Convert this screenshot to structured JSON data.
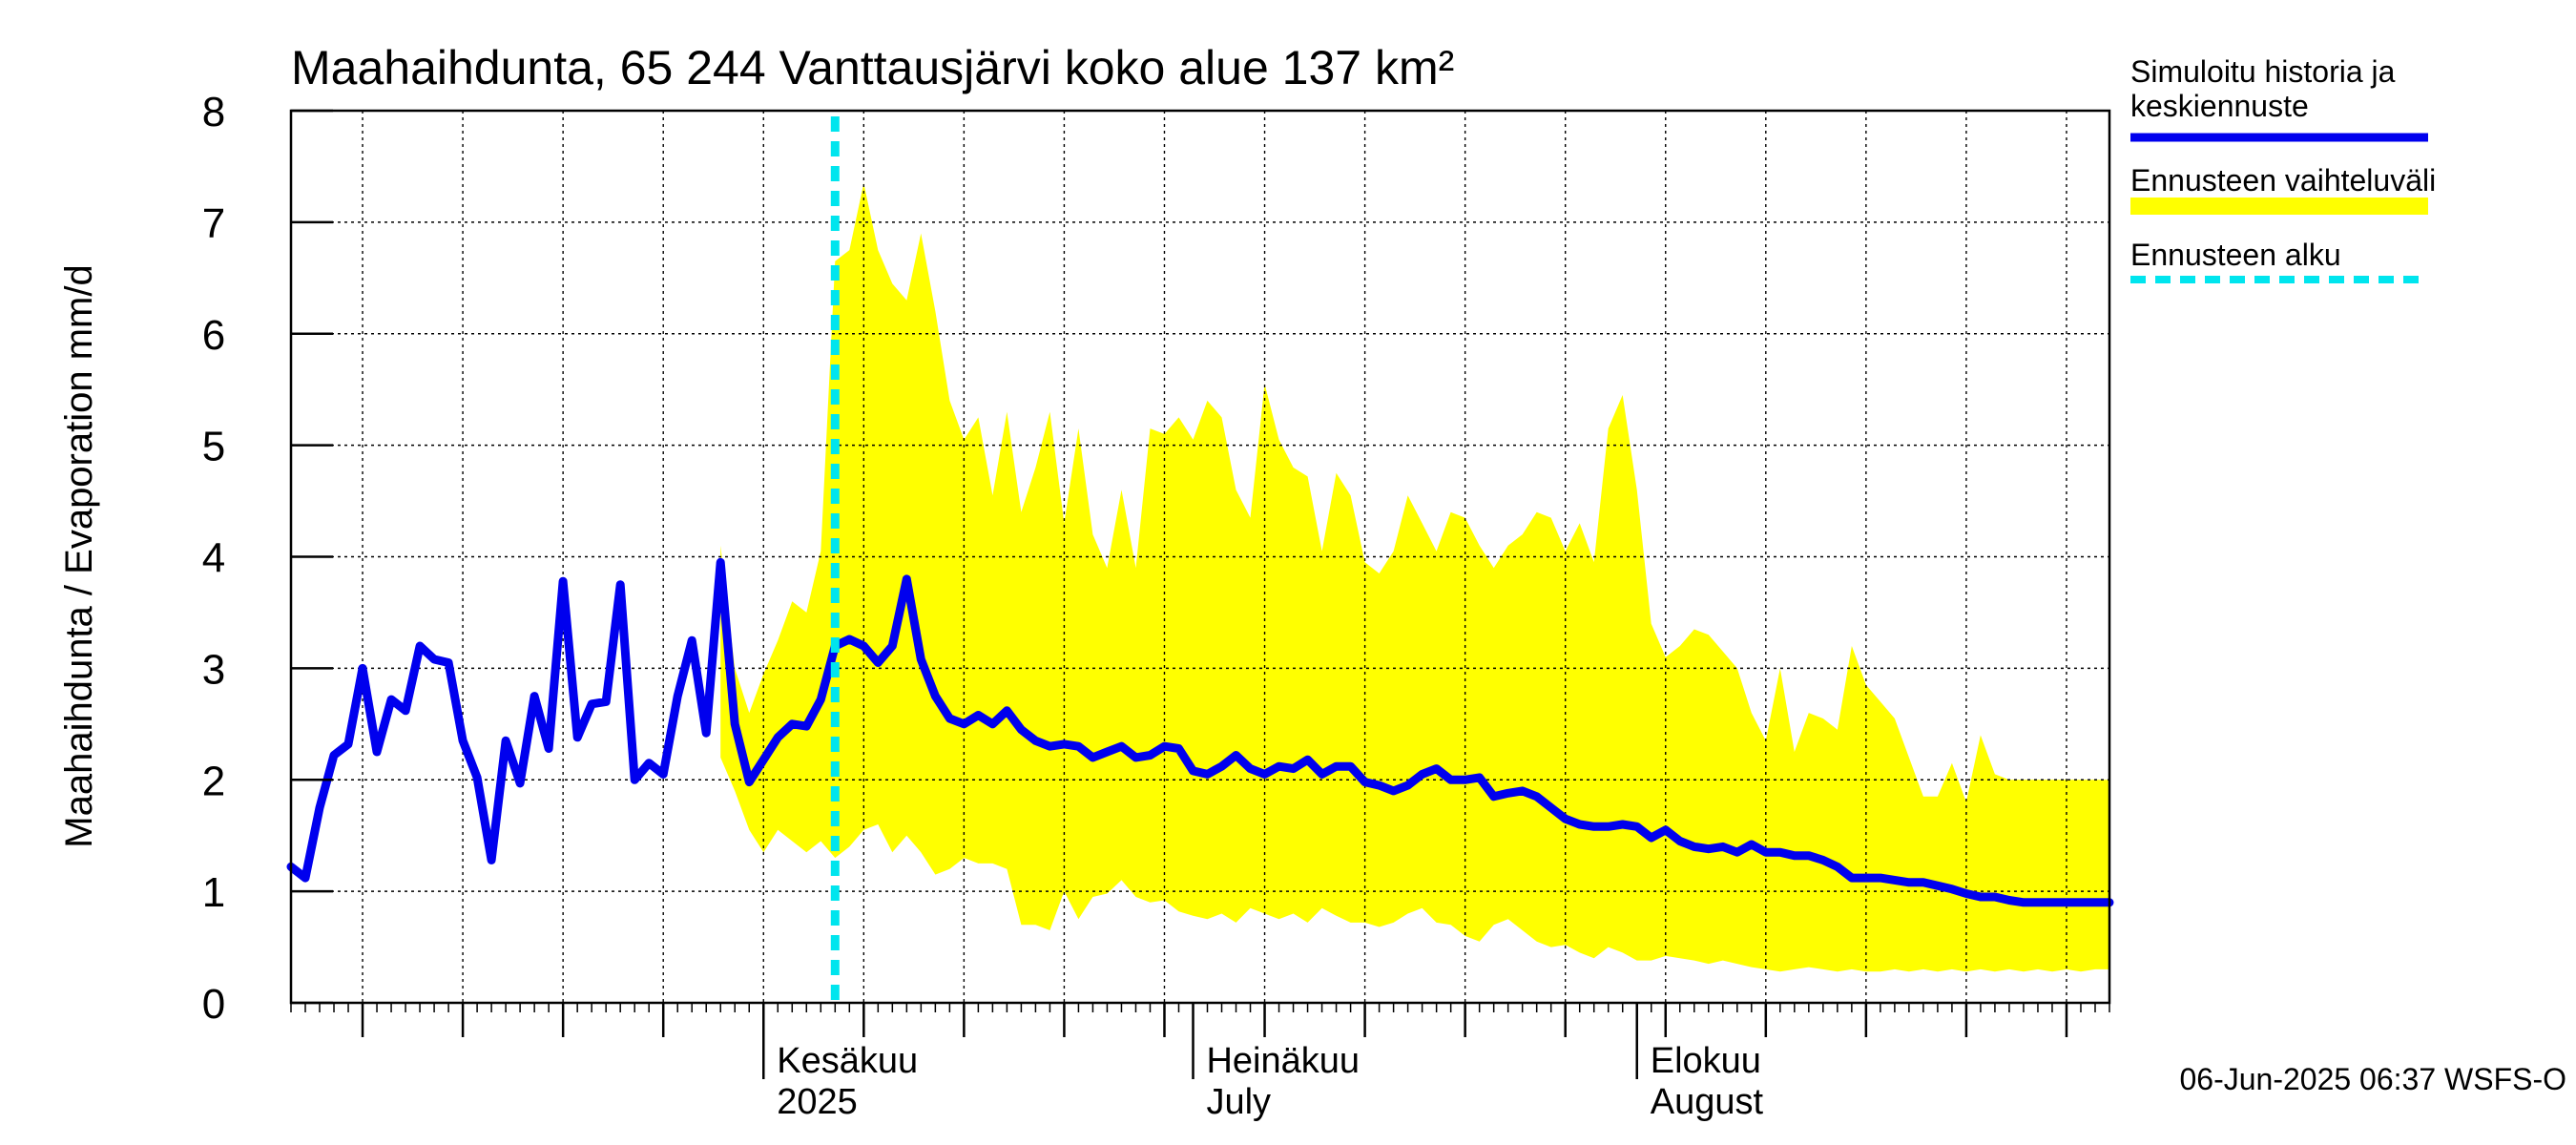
{
  "chart_data": {
    "type": "area",
    "title": "Maahaihdunta, 65 244 Vanttausjärvi koko alue 137 km²",
    "ylabel": "Maahaihdunta / Evaporation   mm/d",
    "ylim": [
      0,
      8
    ],
    "yticks": [
      0,
      1,
      2,
      3,
      4,
      5,
      6,
      7,
      8
    ],
    "xlim": [
      "2025-04-29",
      "2025-09-03"
    ],
    "forecast_start": "2025-06-06",
    "month_labels": [
      {
        "date": "2025-06-01",
        "line1": "Kesäkuu",
        "line2": "2025"
      },
      {
        "date": "2025-07-01",
        "line1": "Heinäkuu",
        "line2": "July"
      },
      {
        "date": "2025-08-01",
        "line1": "Elokuu",
        "line2": "August"
      }
    ],
    "x": [
      "2025-04-29",
      "2025-04-30",
      "2025-05-01",
      "2025-05-02",
      "2025-05-03",
      "2025-05-04",
      "2025-05-05",
      "2025-05-06",
      "2025-05-07",
      "2025-05-08",
      "2025-05-09",
      "2025-05-10",
      "2025-05-11",
      "2025-05-12",
      "2025-05-13",
      "2025-05-14",
      "2025-05-15",
      "2025-05-16",
      "2025-05-17",
      "2025-05-18",
      "2025-05-19",
      "2025-05-20",
      "2025-05-21",
      "2025-05-22",
      "2025-05-23",
      "2025-05-24",
      "2025-05-25",
      "2025-05-26",
      "2025-05-27",
      "2025-05-28",
      "2025-05-29",
      "2025-05-30",
      "2025-05-31",
      "2025-06-01",
      "2025-06-02",
      "2025-06-03",
      "2025-06-04",
      "2025-06-05",
      "2025-06-06",
      "2025-06-07",
      "2025-06-08",
      "2025-06-09",
      "2025-06-10",
      "2025-06-11",
      "2025-06-12",
      "2025-06-13",
      "2025-06-14",
      "2025-06-15",
      "2025-06-16",
      "2025-06-17",
      "2025-06-18",
      "2025-06-19",
      "2025-06-20",
      "2025-06-21",
      "2025-06-22",
      "2025-06-23",
      "2025-06-24",
      "2025-06-25",
      "2025-06-26",
      "2025-06-27",
      "2025-06-28",
      "2025-06-29",
      "2025-06-30",
      "2025-07-01",
      "2025-07-02",
      "2025-07-03",
      "2025-07-04",
      "2025-07-05",
      "2025-07-06",
      "2025-07-07",
      "2025-07-08",
      "2025-07-09",
      "2025-07-10",
      "2025-07-11",
      "2025-07-12",
      "2025-07-13",
      "2025-07-14",
      "2025-07-15",
      "2025-07-16",
      "2025-07-17",
      "2025-07-18",
      "2025-07-19",
      "2025-07-20",
      "2025-07-21",
      "2025-07-22",
      "2025-07-23",
      "2025-07-24",
      "2025-07-25",
      "2025-07-26",
      "2025-07-27",
      "2025-07-28",
      "2025-07-29",
      "2025-07-30",
      "2025-07-31",
      "2025-08-01",
      "2025-08-02",
      "2025-08-03",
      "2025-08-04",
      "2025-08-05",
      "2025-08-06",
      "2025-08-07",
      "2025-08-08",
      "2025-08-09",
      "2025-08-10",
      "2025-08-11",
      "2025-08-12",
      "2025-08-13",
      "2025-08-14",
      "2025-08-15",
      "2025-08-16",
      "2025-08-17",
      "2025-08-18",
      "2025-08-19",
      "2025-08-20",
      "2025-08-21",
      "2025-08-22",
      "2025-08-23",
      "2025-08-24",
      "2025-08-25",
      "2025-08-26",
      "2025-08-27",
      "2025-08-28",
      "2025-08-29",
      "2025-08-30",
      "2025-08-31",
      "2025-09-01",
      "2025-09-02",
      "2025-09-03"
    ],
    "series": [
      {
        "name": "Simuloitu historia ja keskiennuste",
        "color": "#0000ee",
        "values": [
          1.22,
          1.12,
          1.75,
          2.22,
          2.32,
          3.0,
          2.25,
          2.72,
          2.62,
          3.2,
          3.08,
          3.05,
          2.35,
          2.02,
          1.28,
          2.35,
          1.97,
          2.75,
          2.28,
          3.78,
          2.38,
          2.68,
          2.7,
          3.75,
          2.0,
          2.15,
          2.05,
          2.75,
          3.25,
          2.42,
          3.95,
          2.5,
          1.98,
          2.18,
          2.38,
          2.5,
          2.48,
          2.72,
          3.2,
          3.26,
          3.2,
          3.05,
          3.2,
          3.8,
          3.08,
          2.75,
          2.55,
          2.5,
          2.58,
          2.5,
          2.62,
          2.45,
          2.35,
          2.3,
          2.32,
          2.3,
          2.2,
          2.25,
          2.3,
          2.2,
          2.22,
          2.3,
          2.28,
          2.08,
          2.05,
          2.12,
          2.22,
          2.1,
          2.05,
          2.12,
          2.1,
          2.18,
          2.05,
          2.12,
          2.12,
          1.98,
          1.95,
          1.9,
          1.95,
          2.05,
          2.1,
          2.0,
          2.0,
          2.02,
          1.85,
          1.88,
          1.9,
          1.85,
          1.75,
          1.65,
          1.6,
          1.58,
          1.58,
          1.6,
          1.58,
          1.48,
          1.55,
          1.45,
          1.4,
          1.38,
          1.4,
          1.35,
          1.42,
          1.35,
          1.35,
          1.32,
          1.32,
          1.28,
          1.22,
          1.12,
          1.12,
          1.12,
          1.1,
          1.08,
          1.08,
          1.05,
          1.02,
          0.98,
          0.95,
          0.95,
          0.92,
          0.9,
          0.9,
          0.9,
          0.9,
          0.9,
          0.9,
          0.9
        ]
      },
      {
        "name": "Ennusteen vaihteluväli",
        "color": "#ffff00",
        "upper": [
          null,
          null,
          null,
          null,
          null,
          null,
          null,
          null,
          null,
          null,
          null,
          null,
          null,
          null,
          null,
          null,
          null,
          null,
          null,
          null,
          null,
          null,
          null,
          null,
          null,
          null,
          null,
          null,
          null,
          null,
          4.1,
          3.0,
          2.6,
          2.95,
          3.25,
          3.6,
          3.5,
          4.05,
          6.65,
          6.75,
          7.35,
          6.75,
          6.45,
          6.3,
          6.9,
          6.2,
          5.4,
          5.05,
          5.25,
          4.55,
          5.3,
          4.4,
          4.8,
          5.3,
          4.3,
          5.15,
          4.2,
          3.9,
          4.6,
          3.9,
          5.15,
          5.1,
          5.25,
          5.05,
          5.4,
          5.25,
          4.6,
          4.35,
          5.55,
          5.05,
          4.8,
          4.72,
          4.05,
          4.75,
          4.55,
          3.95,
          3.85,
          4.05,
          4.55,
          4.3,
          4.05,
          4.4,
          4.35,
          4.1,
          3.9,
          4.1,
          4.2,
          4.4,
          4.35,
          4.05,
          4.3,
          3.95,
          5.15,
          5.45,
          4.6,
          3.4,
          3.1,
          3.2,
          3.35,
          3.3,
          3.15,
          3.0,
          2.6,
          2.35,
          3.0,
          2.25,
          2.6,
          2.55,
          2.45,
          3.2,
          2.85,
          2.7,
          2.55,
          2.2,
          1.85,
          1.85,
          2.15,
          1.8,
          2.4,
          2.05,
          2.0,
          2.0,
          2.0,
          2.0,
          2.0,
          2.0,
          2.0,
          2.0
        ],
        "lower": [
          null,
          null,
          null,
          null,
          null,
          null,
          null,
          null,
          null,
          null,
          null,
          null,
          null,
          null,
          null,
          null,
          null,
          null,
          null,
          null,
          null,
          null,
          null,
          null,
          null,
          null,
          null,
          null,
          null,
          null,
          2.2,
          1.9,
          1.55,
          1.35,
          1.55,
          1.45,
          1.35,
          1.45,
          1.3,
          1.4,
          1.55,
          1.6,
          1.35,
          1.5,
          1.35,
          1.15,
          1.2,
          1.3,
          1.25,
          1.25,
          1.2,
          0.7,
          0.7,
          0.65,
          1.0,
          0.75,
          0.95,
          0.98,
          1.1,
          0.95,
          0.9,
          0.92,
          0.82,
          0.78,
          0.75,
          0.8,
          0.72,
          0.85,
          0.8,
          0.75,
          0.8,
          0.72,
          0.85,
          0.78,
          0.72,
          0.72,
          0.68,
          0.72,
          0.8,
          0.85,
          0.72,
          0.7,
          0.6,
          0.55,
          0.7,
          0.75,
          0.65,
          0.55,
          0.5,
          0.52,
          0.45,
          0.4,
          0.5,
          0.45,
          0.38,
          0.38,
          0.42,
          0.4,
          0.38,
          0.35,
          0.38,
          0.35,
          0.32,
          0.3,
          0.28,
          0.3,
          0.32,
          0.3,
          0.28,
          0.3,
          0.28,
          0.28,
          0.3,
          0.28,
          0.3,
          0.28,
          0.3,
          0.28,
          0.3,
          0.28,
          0.3,
          0.28,
          0.3,
          0.28,
          0.3,
          0.28,
          0.3,
          0.3
        ]
      }
    ],
    "legend": {
      "placement": "right",
      "entries": [
        {
          "line1": "Simuloitu historia ja",
          "line2": "keskiennuste",
          "style": "solid",
          "color": "#0000ee"
        },
        {
          "line1": "Ennusteen vaihteluväli",
          "line2": "",
          "style": "band",
          "color": "#ffff00"
        },
        {
          "line1": "Ennusteen alku",
          "line2": "",
          "style": "dashed",
          "color": "#00e5ee"
        }
      ]
    },
    "grid": true,
    "timestamp": "06-Jun-2025 06:37 WSFS-O"
  }
}
